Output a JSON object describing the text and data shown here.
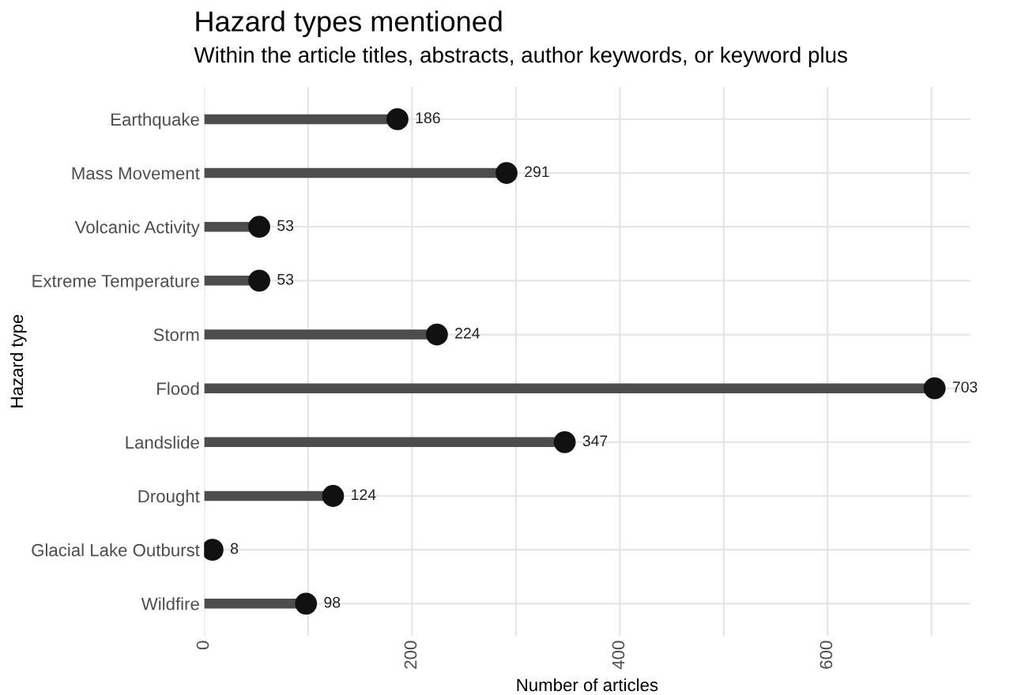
{
  "chart_data": {
    "type": "lollipop",
    "orientation": "horizontal",
    "title": "Hazard types mentioned",
    "subtitle": "Within the article titles, abstracts, author keywords, or keyword plus",
    "xlabel": "Number of articles",
    "ylabel": "Hazard type",
    "categories": [
      "Earthquake",
      "Mass Movement",
      "Volcanic Activity",
      "Extreme Temperature",
      "Storm",
      "Flood",
      "Landslide",
      "Drought",
      "Glacial Lake Outburst",
      "Wildfire"
    ],
    "values": [
      186,
      291,
      53,
      53,
      224,
      703,
      347,
      124,
      8,
      98
    ],
    "color": "#111111",
    "xlim": [
      0,
      737
    ],
    "xticks": [
      0,
      {
        "value": 100,
        "label": null
      },
      200,
      {
        "value": 300,
        "label": null
      },
      400,
      {
        "value": 500,
        "label": null
      },
      600,
      {
        "value": 700,
        "label": null
      }
    ],
    "grid": true,
    "data_labels": true,
    "marker": "circle",
    "legend": false
  }
}
